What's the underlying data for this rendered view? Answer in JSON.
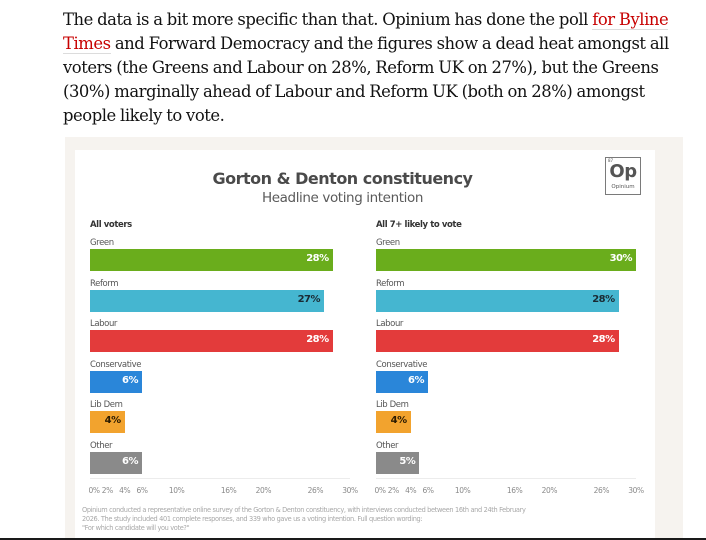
{
  "article": {
    "text_before_link": "The data is a bit more specific than that. Opinium has done the poll ",
    "link_text": "for Byline Times",
    "text_after_link": " and Forward Democracy and the figures show a dead heat amongst all voters (the Greens and Labour on 28%, Reform UK on 27%), but the Greens (30%) marginally ahead of Labour and Reform UK (both on 28%) amongst people likely to vote.",
    "link_color": "#c70000"
  },
  "logo": {
    "number": "87",
    "symbol": "Op",
    "name": "Opinium"
  },
  "chart_data": {
    "type": "bar",
    "orientation": "horizontal",
    "title": "Gorton & Denton constituency",
    "subtitle": "Headline voting intention",
    "categories": [
      "Green",
      "Reform",
      "Labour",
      "Conservative",
      "Lib Dem",
      "Other"
    ],
    "colors": {
      "Green": "#6aad1c",
      "Reform": "#45b6d0",
      "Labour": "#e33b3b",
      "Conservative": "#2a86d9",
      "Lib Dem": "#f2a32e",
      "Other": "#8a8a8a"
    },
    "value_label_colors": {
      "Green": "#ffffff",
      "Reform": "#1a2a33",
      "Labour": "#ffffff",
      "Conservative": "#ffffff",
      "Lib Dem": "#2a1a00",
      "Other": "#ffffff"
    },
    "series": [
      {
        "name": "All voters",
        "values": [
          28,
          27,
          28,
          6,
          4,
          6
        ],
        "labels": [
          "28%",
          "27%",
          "28%",
          "6%",
          "4%",
          "6%"
        ]
      },
      {
        "name": "All 7+ likely to vote",
        "values": [
          30,
          28,
          28,
          6,
          4,
          5
        ],
        "labels": [
          "30%",
          "28%",
          "28%",
          "6%",
          "4%",
          "5%"
        ]
      }
    ],
    "xlim": [
      0,
      30
    ],
    "xticks": [
      0,
      2,
      4,
      6,
      10,
      16,
      20,
      26,
      30
    ],
    "xtick_labels": [
      "0%",
      "2%",
      "4%",
      "6%",
      "10%",
      "16%",
      "20%",
      "26%",
      "30%"
    ],
    "xlabel": "",
    "ylabel": "",
    "grid": false,
    "legend": "none"
  },
  "footnote": {
    "line1": "Opinium conducted a representative online survey of the Gorton & Denton constituency, with interviews conducted between 16th and 24th February",
    "line2": "2026. The study included 401 complete responses, and 339 who gave us a voting intention. Full question wording:",
    "line3": "\"For which candidate will you vote?\""
  }
}
